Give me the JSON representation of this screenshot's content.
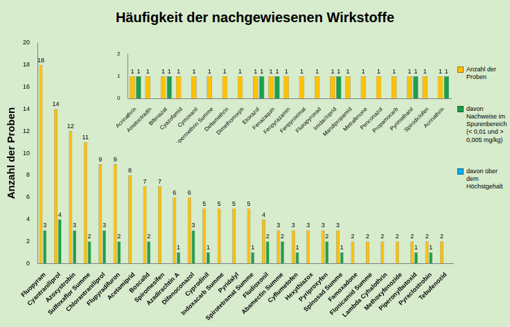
{
  "chart_data": [
    {
      "type": "bar",
      "title": "Häufigkeit der nachgewiesenen Wirkstoffe",
      "ylabel": "Anzahl der Proben",
      "categories": [
        "Fluopyram",
        "Cyantraniliprol",
        "Azoxystrobin",
        "Sulfoxaflor Summe",
        "Chlorantraniliprol",
        "Flupyradifuron",
        "Acetamiprid",
        "Boscalid",
        "Spiromesifen",
        "Azadirachtin A",
        "Difenoconazol",
        "Cyprodinil",
        "Indoxacarb Summe",
        "Pyridalyl",
        "Spirotetramat Summe",
        "Fludioxonil",
        "Abamectin Summe",
        "Cyflumetofen",
        "Hexythiazox",
        "Pyriproxyfen",
        "Spinosad Summe",
        "Famoxadone",
        "Flonicamid Summe",
        "Lambda Cyhalothrin",
        "Methoxyfenozide",
        "Piperonylbutoxid",
        "Pyraclostrobin",
        "Tebufenozid"
      ],
      "series": [
        {
          "name": "Anzahl der Proben",
          "color": "#ffc000",
          "values": [
            18,
            14,
            12,
            11,
            9,
            9,
            8,
            7,
            7,
            6,
            6,
            5,
            5,
            5,
            5,
            4,
            3,
            3,
            3,
            3,
            3,
            2,
            2,
            2,
            2,
            2,
            2,
            2
          ]
        },
        {
          "name": "davon Nachweise im Spurenbereich (< 0,01 und > 0,005 mg/kg)",
          "color": "#1f9e4a",
          "values": [
            3,
            4,
            3,
            2,
            3,
            2,
            null,
            2,
            null,
            1,
            3,
            1,
            null,
            null,
            1,
            2,
            2,
            1,
            null,
            2,
            1,
            null,
            null,
            null,
            null,
            1,
            1,
            null
          ]
        },
        {
          "name": "davon über dem Höchstgehalt",
          "color": "#00b0f0",
          "values": [
            null,
            null,
            null,
            null,
            null,
            null,
            null,
            null,
            null,
            null,
            null,
            null,
            null,
            null,
            null,
            null,
            null,
            null,
            null,
            null,
            null,
            null,
            null,
            null,
            null,
            null,
            null,
            null
          ]
        }
      ],
      "ylim": [
        0,
        20
      ],
      "yticks": [
        0,
        2,
        4,
        6,
        8,
        10,
        12,
        14,
        16,
        18,
        20
      ],
      "grid": false,
      "legend": "right",
      "data_labels": true
    },
    {
      "type": "bar",
      "categories": [
        "Acrinathrin",
        "Ametoctradin",
        "Bifenazat",
        "Cyazofamid",
        "Cymoxanil",
        "Cypermethrin Summe",
        "Deltamethrin",
        "Dimethomorph",
        "Etoxazol",
        "Fenazaquin",
        "Fenpyrazamin",
        "Fenpyroximat",
        "Fluxapyroxad",
        "Imidacloprid",
        "Mandipropamid",
        "Metrafenone",
        "Penconazol",
        "Propamocarb",
        "Pyrimethanil",
        "Spirodiclofen",
        "Acrinathrin"
      ],
      "series": [
        {
          "name": "Anzahl der Proben",
          "color": "#ffc000",
          "values": [
            1,
            1,
            1,
            1,
            1,
            1,
            1,
            1,
            1,
            1,
            1,
            1,
            1,
            1,
            1,
            1,
            1,
            1,
            1,
            1,
            1
          ]
        },
        {
          "name": "davon Nachweise im Spurenbereich (< 0,01 und > 0,005 mg/kg)",
          "color": "#1f9e4a",
          "values": [
            1,
            null,
            1,
            null,
            null,
            null,
            null,
            null,
            1,
            1,
            null,
            null,
            null,
            1,
            null,
            null,
            null,
            null,
            1,
            null,
            1
          ]
        }
      ],
      "ylim": [
        0,
        2
      ],
      "yticks": [
        0,
        1,
        2
      ],
      "grid": false,
      "data_labels": true
    }
  ]
}
